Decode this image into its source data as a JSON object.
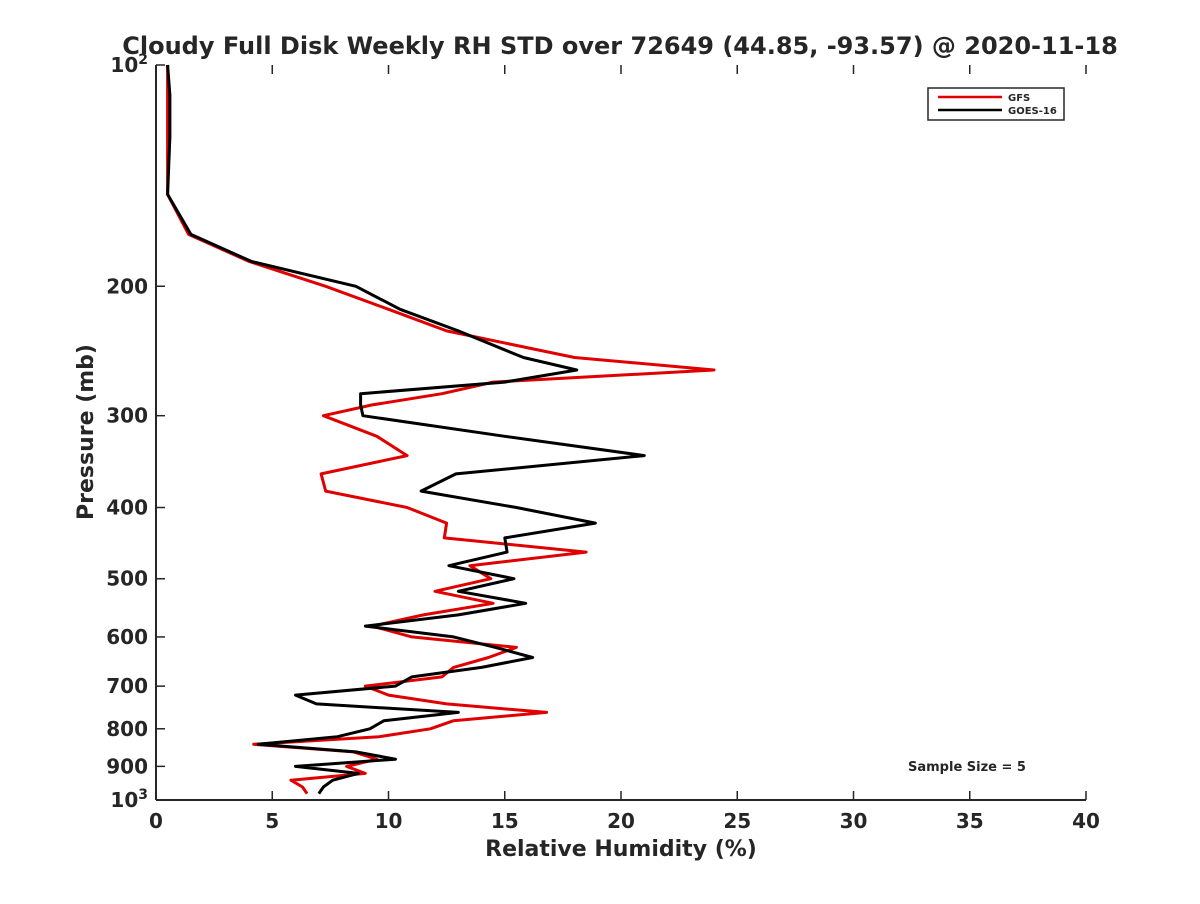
{
  "chart_data": {
    "type": "line",
    "title": "Cloudy Full Disk Weekly RH STD over 72649 (44.85, -93.57) @ 2020-11-18",
    "xlabel": "Relative Humidity (%)",
    "ylabel": "Pressure (mb)",
    "xlim": [
      0,
      40
    ],
    "ylim": [
      100,
      1000
    ],
    "yscale": "log",
    "y_reversed": true,
    "grid": false,
    "legend_position": "top-right",
    "x_ticks": [
      0,
      5,
      10,
      15,
      20,
      25,
      30,
      35,
      40
    ],
    "x_tick_labels": [
      "0",
      "5",
      "10",
      "15",
      "20",
      "25",
      "30",
      "35",
      "40"
    ],
    "y_ticks": [
      100,
      200,
      300,
      400,
      500,
      600,
      700,
      800,
      900,
      1000
    ],
    "y_tick_labels": [
      "10²",
      "200",
      "300",
      "400",
      "500",
      "600",
      "700",
      "800",
      "900",
      "10³"
    ],
    "annotation": "Sample Size = 5",
    "series": [
      {
        "name": "GFS",
        "color": "#e00000",
        "pressure": [
          100,
          110,
          125,
          150,
          170,
          185,
          200,
          215,
          230,
          250,
          260,
          270,
          280,
          290,
          300,
          320,
          340,
          360,
          380,
          400,
          420,
          440,
          460,
          480,
          500,
          520,
          540,
          560,
          580,
          600,
          620,
          640,
          660,
          680,
          700,
          720,
          740,
          760,
          780,
          800,
          820,
          840,
          860,
          880,
          900,
          920,
          940,
          960,
          980
        ],
        "values": [
          0.5,
          0.5,
          0.5,
          0.5,
          1.4,
          4.0,
          7.3,
          10.0,
          12.5,
          18.0,
          24.0,
          14.5,
          12.3,
          9.3,
          7.2,
          9.5,
          10.8,
          7.1,
          7.3,
          10.8,
          12.5,
          12.4,
          18.5,
          13.5,
          14.4,
          12.0,
          14.5,
          11.5,
          9.3,
          11.0,
          15.5,
          14.3,
          12.8,
          12.3,
          9.0,
          10.0,
          12.5,
          16.8,
          12.8,
          11.8,
          9.6,
          4.2,
          8.5,
          9.5,
          8.2,
          9.0,
          5.8,
          6.3,
          6.5
        ]
      },
      {
        "name": "GOES-16",
        "color": "#000000",
        "pressure": [
          100,
          110,
          125,
          150,
          170,
          185,
          200,
          215,
          230,
          250,
          260,
          270,
          280,
          290,
          300,
          320,
          340,
          360,
          380,
          400,
          420,
          440,
          460,
          480,
          500,
          520,
          540,
          560,
          580,
          600,
          620,
          640,
          660,
          680,
          700,
          720,
          740,
          760,
          780,
          800,
          820,
          840,
          860,
          880,
          900,
          920,
          940,
          960,
          980
        ],
        "values": [
          0.5,
          0.6,
          0.6,
          0.5,
          1.5,
          4.1,
          8.6,
          10.5,
          13.0,
          15.8,
          18.1,
          15.0,
          8.8,
          8.8,
          8.9,
          15.0,
          21.0,
          12.9,
          11.4,
          15.5,
          18.9,
          15.0,
          15.1,
          12.6,
          15.4,
          13.0,
          15.9,
          13.0,
          9.0,
          12.8,
          14.6,
          16.2,
          14.0,
          11.0,
          10.3,
          6.0,
          6.9,
          13.0,
          9.8,
          9.2,
          7.8,
          4.4,
          8.6,
          10.3,
          6.0,
          8.7,
          7.6,
          7.2,
          7.0
        ]
      }
    ]
  }
}
